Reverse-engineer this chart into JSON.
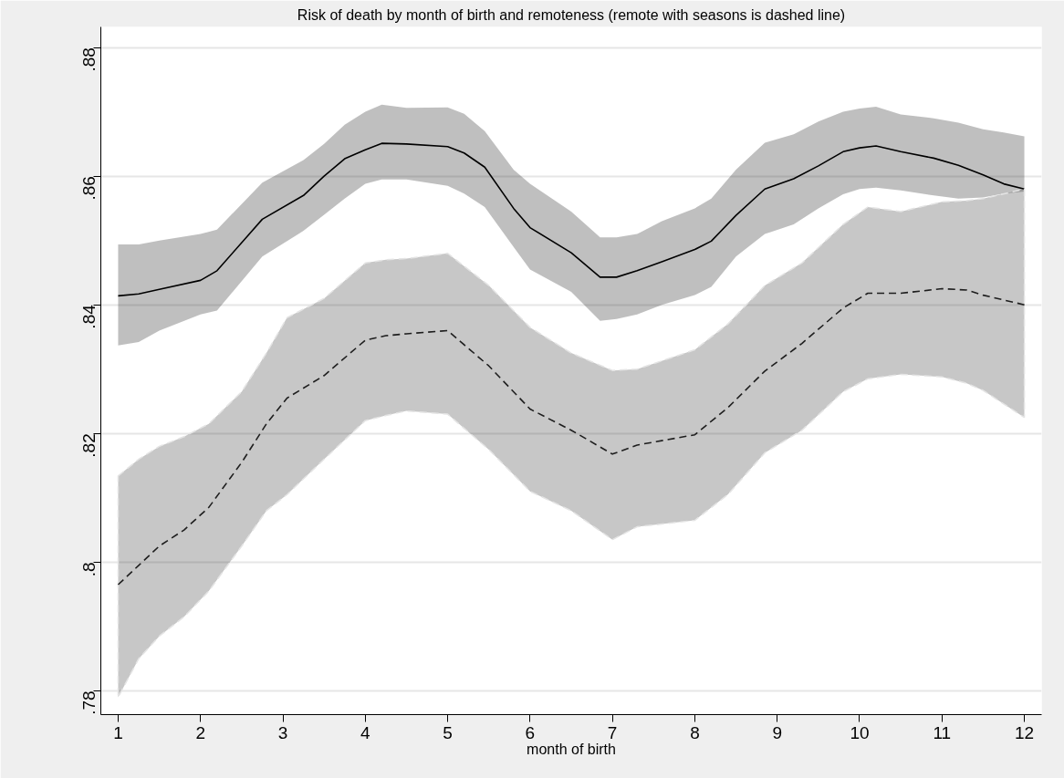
{
  "chart_data": {
    "type": "line",
    "title": "Risk of death by month of birth and remoteness (remote with seasons is dashed line)",
    "xlabel": "month of birth",
    "xlim": [
      0.79,
      12.21
    ],
    "ylim": [
      0.7763,
      0.8832
    ],
    "xticks": [
      1,
      2,
      3,
      4,
      5,
      6,
      7,
      8,
      9,
      10,
      11,
      12
    ],
    "yticks": [
      {
        "value": 0.78,
        "label": ".78"
      },
      {
        "value": 0.8,
        "label": ".8"
      },
      {
        "value": 0.82,
        "label": ".82"
      },
      {
        "value": 0.84,
        "label": ".84"
      },
      {
        "value": 0.86,
        "label": ".86"
      },
      {
        "value": 0.88,
        "label": ".88"
      }
    ],
    "grid": "y",
    "marker": "none",
    "series": [
      {
        "color": "#000000",
        "line_style": "solid",
        "x": [
          1,
          1.25,
          1.5,
          2,
          2.2,
          2.75,
          3.25,
          3.5,
          3.75,
          4,
          4.2,
          4.5,
          5,
          5.2,
          5.45,
          5.8,
          6,
          6.5,
          6.85,
          7.05,
          7.3,
          7.6,
          8,
          8.2,
          8.5,
          8.85,
          9.2,
          9.5,
          9.8,
          10,
          10.2,
          10.5,
          10.9,
          11.2,
          11.5,
          11.75,
          12
        ],
        "values": [
          0.8414,
          0.8417,
          0.8424,
          0.8438,
          0.8453,
          0.8533,
          0.857,
          0.86,
          0.8627,
          0.8641,
          0.8651,
          0.865,
          0.8646,
          0.8636,
          0.8614,
          0.855,
          0.852,
          0.8481,
          0.8443,
          0.8443,
          0.8453,
          0.8467,
          0.8486,
          0.8499,
          0.8539,
          0.858,
          0.8596,
          0.8616,
          0.8638,
          0.8644,
          0.8647,
          0.8638,
          0.8628,
          0.8617,
          0.8602,
          0.8588,
          0.858
        ],
        "upper": [
          0.8494,
          0.8494,
          0.85,
          0.851,
          0.8517,
          0.859,
          0.8625,
          0.865,
          0.868,
          0.87,
          0.8711,
          0.8706,
          0.8707,
          0.8697,
          0.867,
          0.861,
          0.8588,
          0.8545,
          0.8505,
          0.8505,
          0.851,
          0.853,
          0.855,
          0.8565,
          0.861,
          0.8652,
          0.8665,
          0.8685,
          0.87,
          0.8705,
          0.8708,
          0.8696,
          0.869,
          0.8683,
          0.8673,
          0.8668,
          0.8662
        ],
        "lower": [
          0.8337,
          0.8342,
          0.836,
          0.8385,
          0.8391,
          0.8475,
          0.8515,
          0.854,
          0.8565,
          0.8588,
          0.8595,
          0.8595,
          0.8585,
          0.8573,
          0.8552,
          0.849,
          0.8455,
          0.842,
          0.8375,
          0.8378,
          0.8385,
          0.84,
          0.8415,
          0.8428,
          0.8475,
          0.851,
          0.8525,
          0.855,
          0.8572,
          0.858,
          0.8582,
          0.8578,
          0.857,
          0.8565,
          0.8567,
          0.8573,
          0.8576
        ]
      },
      {
        "color": "#1e1e1e",
        "line_style": "dashed",
        "x": [
          1,
          1.25,
          1.5,
          1.8,
          2.1,
          2.5,
          2.8,
          3.05,
          3.5,
          4,
          4.25,
          4.5,
          5,
          5.5,
          6,
          6.5,
          7,
          7.3,
          8,
          8.4,
          8.85,
          9.3,
          9.8,
          10.1,
          10.5,
          11,
          11.3,
          11.5,
          12
        ],
        "values": [
          0.7965,
          0.7995,
          0.8025,
          0.805,
          0.8085,
          0.8155,
          0.8215,
          0.8255,
          0.829,
          0.8345,
          0.8352,
          0.8355,
          0.836,
          0.8305,
          0.8238,
          0.8205,
          0.8168,
          0.8182,
          0.8198,
          0.824,
          0.8297,
          0.834,
          0.8395,
          0.8418,
          0.8418,
          0.8425,
          0.8423,
          0.8415,
          0.84
        ],
        "upper": [
          0.8134,
          0.816,
          0.818,
          0.8195,
          0.8215,
          0.8265,
          0.8325,
          0.838,
          0.841,
          0.8465,
          0.847,
          0.8472,
          0.848,
          0.843,
          0.8365,
          0.8325,
          0.8298,
          0.83,
          0.833,
          0.837,
          0.843,
          0.8465,
          0.8525,
          0.8552,
          0.8545,
          0.856,
          0.8562,
          0.8565,
          0.858
        ],
        "lower": [
          0.779,
          0.785,
          0.7885,
          0.7915,
          0.7955,
          0.8025,
          0.808,
          0.8105,
          0.816,
          0.822,
          0.8228,
          0.8235,
          0.823,
          0.8175,
          0.811,
          0.808,
          0.8035,
          0.8055,
          0.8065,
          0.8105,
          0.817,
          0.8205,
          0.8265,
          0.8285,
          0.8292,
          0.8288,
          0.8278,
          0.8267,
          0.8225
        ]
      }
    ]
  }
}
